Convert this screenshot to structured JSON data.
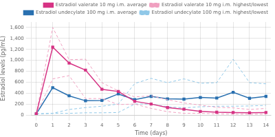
{
  "chart_data": {
    "type": "line",
    "xlabel": "Time (days)",
    "ylabel": "Estradiol levels (pg/mL)",
    "x": [
      0,
      1,
      2,
      3,
      4,
      5,
      6,
      7,
      8,
      9,
      10,
      11,
      12,
      13,
      14
    ],
    "series": [
      {
        "name": "Estradiol valerate 10 mg i.m. average",
        "color": "#d63384",
        "line_style": "solid",
        "marker": "square",
        "values": [
          20,
          1240,
          950,
          820,
          470,
          430,
          250,
          200,
          135,
          105,
          65,
          50,
          45,
          40,
          45
        ]
      },
      {
        "name": "Estradiol valerate 10 mg i.m. highest/lowest",
        "color": "#f0a0c0",
        "line_style": "dashed",
        "marker": "none",
        "values": [
          20,
          1600,
          1010,
          1020,
          590,
          440,
          330,
          350,
          280,
          220,
          180,
          140,
          130,
          100,
          120
        ]
      },
      {
        "name": "Estradiol valerate 10 mg i.m. highest/lowest",
        "color": "#f0a0c0",
        "line_style": "dashed",
        "marker": "none",
        "values": [
          20,
          660,
          720,
          300,
          300,
          190,
          200,
          120,
          60,
          30,
          30,
          20,
          15,
          15,
          15
        ]
      },
      {
        "name": "Estradiol undecylate 100 mg i.m. average",
        "color": "#2970b0",
        "line_style": "solid",
        "marker": "square",
        "values": [
          20,
          500,
          350,
          260,
          265,
          385,
          280,
          340,
          295,
          290,
          320,
          310,
          415,
          305,
          340
        ]
      },
      {
        "name": "Estradiol undecylate 100 mg i.m. highest/lowest",
        "color": "#90c8e8",
        "line_style": "dashed",
        "marker": "none",
        "values": [
          20,
          30,
          100,
          135,
          160,
          200,
          575,
          670,
          590,
          660,
          580,
          590,
          1020,
          590,
          570
        ]
      },
      {
        "name": "Estradiol undecylate 100 mg i.m. highest/lowest",
        "color": "#90c8e8",
        "line_style": "dashed",
        "marker": "none",
        "values": [
          20,
          30,
          30,
          40,
          40,
          45,
          200,
          200,
          150,
          130,
          150,
          160,
          160,
          165,
          175
        ]
      }
    ],
    "xlim": [
      -0.3,
      14.3
    ],
    "xticks": [
      0,
      1,
      2,
      3,
      4,
      5,
      6,
      7,
      8,
      9,
      10,
      11,
      12,
      13,
      14
    ],
    "ylim": [
      0,
      1700
    ],
    "yticks": [
      0,
      200,
      400,
      600,
      800,
      1000,
      1200,
      1400,
      1600
    ],
    "grid": true,
    "legend": "upper right"
  }
}
